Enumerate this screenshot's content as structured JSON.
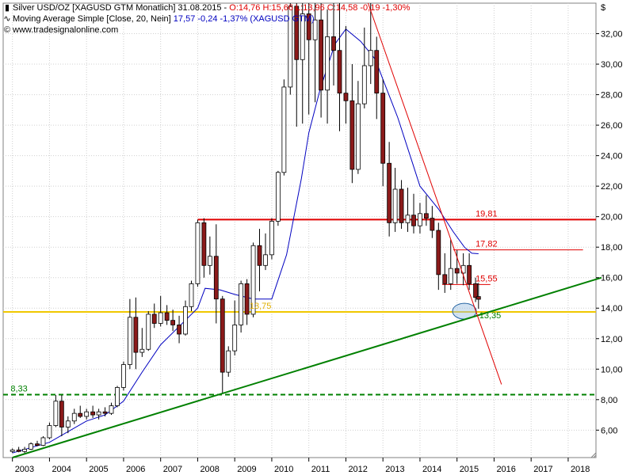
{
  "header": {
    "line1_prefix": "Silver USD/OZ [XAGUSD GTM  Monatlich] 31.08.2015 - ",
    "line1_values": "O:14,76 H:15,66 L:13,96 C:14,58 -0,19 -1,30%",
    "line2_prefix": "Moving Average Simple [Close, 20, Nein] ",
    "line2_values": "17,57 -0,24 -1,37% (XAGUSD GTM)",
    "line3": "www.tradesignalonline.com"
  },
  "currency": "$",
  "colors": {
    "up_candle": "#ffffff",
    "down_candle": "#8b1a1a",
    "moving_average": "#0000c0",
    "resistance": "#e00000",
    "support_level": "#f0c800",
    "trendline": "#008000",
    "grid": "#d0d0d0"
  },
  "chart_data": {
    "type": "candlestick",
    "y_ticks": [
      "6,00",
      "8,00",
      "10,00",
      "12,00",
      "14,00",
      "16,00",
      "18,00",
      "20,00",
      "22,00",
      "24,00",
      "26,00",
      "28,00",
      "30,00",
      "32,00"
    ],
    "x_ticks": [
      "2003",
      "2004",
      "2005",
      "2006",
      "2007",
      "2008",
      "2009",
      "2010",
      "2011",
      "2012",
      "2013",
      "2014",
      "2015",
      "2016",
      "2017",
      "2018"
    ],
    "ylim": [
      4.2,
      34.0
    ],
    "xlim": [
      2002.75,
      2018.75
    ],
    "horizontal_levels": [
      {
        "name": "resistance",
        "value": 19.81,
        "label": "19,81",
        "from": 2008.0,
        "to": 2018.75
      },
      {
        "name": "resistance-2",
        "value": 17.82,
        "label": "17,82",
        "from": 2014.9,
        "to": 2018.4
      },
      {
        "name": "resistance-3",
        "value": 15.55,
        "label": "15,55",
        "from": 2014.6,
        "to": 2015.9
      },
      {
        "name": "support",
        "value": 13.75,
        "label": "13,75",
        "from": 2002.75,
        "to": 2018.75
      },
      {
        "name": "support-low",
        "value": 8.33,
        "label": "8,33",
        "from": 2002.75,
        "to": 2018.75
      }
    ],
    "trendlines": [
      {
        "name": "long-term-uptrend",
        "points": [
          [
            2003.0,
            4.2
          ],
          [
            2018.9,
            16.0
          ]
        ]
      },
      {
        "name": "downtrend",
        "points": [
          [
            2012.6,
            34.0
          ],
          [
            2016.2,
            9.0
          ]
        ]
      }
    ],
    "annotations": [
      {
        "label": "13,35",
        "value": 13.35,
        "x": 2015.6
      }
    ],
    "candles": [
      [
        2003.0,
        4.6,
        4.8,
        4.5,
        4.7
      ],
      [
        2003.17,
        4.7,
        4.9,
        4.55,
        4.6
      ],
      [
        2003.33,
        4.6,
        4.9,
        4.5,
        4.75
      ],
      [
        2003.5,
        4.75,
        5.2,
        4.7,
        5.1
      ],
      [
        2003.67,
        5.1,
        5.3,
        4.95,
        5.0
      ],
      [
        2003.83,
        5.0,
        5.6,
        4.95,
        5.5
      ],
      [
        2004.0,
        5.5,
        6.5,
        5.4,
        6.3
      ],
      [
        2004.17,
        6.3,
        8.3,
        6.2,
        7.9
      ],
      [
        2004.33,
        7.9,
        8.3,
        5.6,
        6.2
      ],
      [
        2004.5,
        6.2,
        6.9,
        5.8,
        6.6
      ],
      [
        2004.67,
        6.6,
        7.4,
        6.4,
        7.1
      ],
      [
        2004.83,
        7.1,
        7.6,
        6.8,
        6.9
      ],
      [
        2005.0,
        6.9,
        7.4,
        6.7,
        7.2
      ],
      [
        2005.17,
        7.2,
        7.6,
        6.8,
        7.0
      ],
      [
        2005.33,
        7.0,
        7.4,
        6.7,
        7.2
      ],
      [
        2005.5,
        7.2,
        7.5,
        6.9,
        7.1
      ],
      [
        2005.67,
        7.1,
        7.8,
        7.0,
        7.6
      ],
      [
        2005.83,
        7.6,
        8.9,
        7.5,
        8.8
      ],
      [
        2006.0,
        8.8,
        10.5,
        8.6,
        10.3
      ],
      [
        2006.17,
        10.3,
        14.6,
        10.0,
        13.4
      ],
      [
        2006.33,
        13.4,
        14.7,
        10.0,
        11.1
      ],
      [
        2006.5,
        11.1,
        12.7,
        10.8,
        11.3
      ],
      [
        2006.67,
        11.3,
        13.8,
        11.2,
        13.6
      ],
      [
        2006.83,
        13.6,
        14.3,
        12.7,
        13.0
      ],
      [
        2007.0,
        13.0,
        14.8,
        12.8,
        13.7
      ],
      [
        2007.17,
        13.7,
        14.2,
        12.9,
        13.2
      ],
      [
        2007.33,
        13.2,
        13.9,
        12.5,
        12.9
      ],
      [
        2007.5,
        12.9,
        13.5,
        11.7,
        12.3
      ],
      [
        2007.67,
        12.3,
        14.5,
        12.2,
        14.1
      ],
      [
        2007.83,
        14.1,
        15.8,
        13.8,
        15.6
      ],
      [
        2008.0,
        15.6,
        19.8,
        15.4,
        19.6
      ],
      [
        2008.17,
        19.6,
        19.9,
        16.0,
        16.8
      ],
      [
        2008.33,
        16.8,
        18.7,
        16.2,
        17.4
      ],
      [
        2008.5,
        17.4,
        19.5,
        13.0,
        14.6
      ],
      [
        2008.67,
        14.6,
        14.8,
        8.4,
        9.8
      ],
      [
        2008.83,
        9.8,
        11.5,
        9.5,
        11.2
      ],
      [
        2009.0,
        11.2,
        14.5,
        10.9,
        12.9
      ],
      [
        2009.17,
        12.9,
        15.8,
        12.4,
        15.6
      ],
      [
        2009.33,
        15.6,
        15.9,
        12.9,
        13.6
      ],
      [
        2009.5,
        13.6,
        18.3,
        13.4,
        18.1
      ],
      [
        2009.67,
        18.1,
        19.2,
        15.1,
        16.8
      ],
      [
        2009.83,
        16.8,
        18.9,
        16.5,
        17.5
      ],
      [
        2010.0,
        17.5,
        19.9,
        17.2,
        19.7
      ],
      [
        2010.17,
        19.7,
        23.0,
        19.4,
        22.9
      ],
      [
        2010.33,
        22.9,
        29.0,
        22.7,
        28.5
      ],
      [
        2010.5,
        28.5,
        34.0,
        28.0,
        33.8
      ],
      [
        2010.67,
        33.8,
        34.0,
        25.9,
        30.3
      ],
      [
        2010.83,
        30.3,
        34.0,
        26.1,
        33.3
      ],
      [
        2011.0,
        33.3,
        34.0,
        26.7,
        31.6
      ],
      [
        2011.17,
        31.6,
        34.0,
        27.5,
        32.9
      ],
      [
        2011.33,
        32.9,
        34.0,
        26.5,
        28.3
      ],
      [
        2011.5,
        28.3,
        33.6,
        26.1,
        31.8
      ],
      [
        2011.67,
        31.8,
        34.0,
        28.6,
        30.9
      ],
      [
        2011.83,
        30.9,
        34.0,
        25.6,
        28.1
      ],
      [
        2012.0,
        28.1,
        32.5,
        26.1,
        27.6
      ],
      [
        2012.17,
        27.6,
        30.0,
        22.2,
        23.1
      ],
      [
        2012.33,
        23.1,
        28.9,
        22.8,
        27.4
      ],
      [
        2012.5,
        27.4,
        32.4,
        27.1,
        29.9
      ],
      [
        2012.67,
        29.9,
        34.0,
        28.7,
        30.9
      ],
      [
        2012.83,
        30.9,
        31.8,
        26.4,
        28.1
      ],
      [
        2013.0,
        28.1,
        29.0,
        22.0,
        23.5
      ],
      [
        2013.17,
        23.5,
        24.9,
        18.7,
        19.6
      ],
      [
        2013.33,
        19.6,
        23.2,
        19.0,
        21.8
      ],
      [
        2013.5,
        21.8,
        22.4,
        19.2,
        19.6
      ],
      [
        2013.67,
        19.6,
        21.9,
        19.0,
        20.1
      ],
      [
        2013.83,
        20.1,
        21.5,
        18.9,
        19.4
      ],
      [
        2014.0,
        19.4,
        20.9,
        18.9,
        20.2
      ],
      [
        2014.17,
        20.2,
        21.4,
        19.4,
        19.9
      ],
      [
        2014.33,
        19.9,
        20.7,
        18.6,
        19.1
      ],
      [
        2014.5,
        19.1,
        19.6,
        15.2,
        16.2
      ],
      [
        2014.67,
        16.2,
        17.6,
        15.0,
        15.6
      ],
      [
        2014.83,
        15.6,
        18.5,
        15.2,
        16.6
      ],
      [
        2015.0,
        16.6,
        17.8,
        15.6,
        16.3
      ],
      [
        2015.17,
        16.3,
        17.6,
        15.5,
        16.8
      ],
      [
        2015.33,
        16.8,
        17.6,
        15.2,
        15.6
      ],
      [
        2015.5,
        15.6,
        16.0,
        14.4,
        14.7
      ],
      [
        2015.58,
        14.76,
        15.66,
        13.96,
        14.58
      ]
    ],
    "moving_average": [
      [
        2003.0,
        4.5
      ],
      [
        2004.0,
        5.2
      ],
      [
        2005.0,
        6.6
      ],
      [
        2005.5,
        7.0
      ],
      [
        2006.0,
        7.9
      ],
      [
        2006.5,
        9.8
      ],
      [
        2007.0,
        11.6
      ],
      [
        2007.5,
        12.8
      ],
      [
        2008.0,
        14.0
      ],
      [
        2008.2,
        15.3
      ],
      [
        2008.6,
        15.2
      ],
      [
        2009.0,
        14.9
      ],
      [
        2009.5,
        14.6
      ],
      [
        2010.0,
        14.6
      ],
      [
        2010.4,
        17.5
      ],
      [
        2010.8,
        22.5
      ],
      [
        2011.0,
        25.5
      ],
      [
        2011.3,
        28.3
      ],
      [
        2011.7,
        31.3
      ],
      [
        2012.0,
        32.3
      ],
      [
        2012.4,
        31.5
      ],
      [
        2012.8,
        30.3
      ],
      [
        2013.0,
        29.0
      ],
      [
        2013.4,
        26.5
      ],
      [
        2013.8,
        23.5
      ],
      [
        2014.0,
        22.0
      ],
      [
        2014.5,
        20.5
      ],
      [
        2014.9,
        19.0
      ],
      [
        2015.2,
        18.0
      ],
      [
        2015.4,
        17.6
      ],
      [
        2015.58,
        17.57
      ]
    ]
  }
}
